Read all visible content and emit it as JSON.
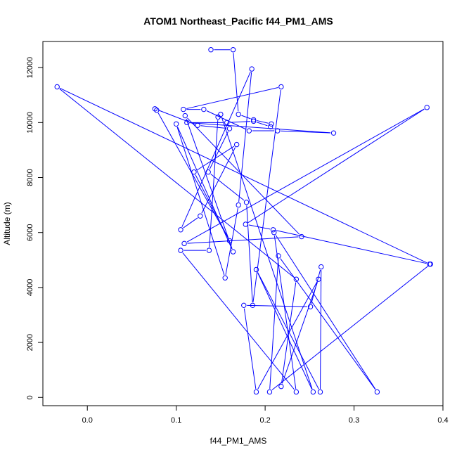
{
  "chart_data": {
    "type": "line",
    "title": "ATOM1 Northeast_Pacific f44_PM1_AMS",
    "xlabel": "f44_PM1_AMS",
    "ylabel": "Altitude (m)",
    "xlim": [
      -0.05,
      0.4
    ],
    "ylim": [
      -300,
      12950
    ],
    "x_ticks": [
      0.0,
      0.1,
      0.2,
      0.3,
      0.4
    ],
    "x_tick_labels": [
      "0.0",
      "0.1",
      "0.2",
      "0.3",
      "0.4"
    ],
    "y_ticks": [
      0,
      2000,
      4000,
      6000,
      8000,
      10000,
      12000
    ],
    "y_tick_labels": [
      "0",
      "2000",
      "4000",
      "6000",
      "8000",
      "10000",
      "12000"
    ],
    "grid": false,
    "legend": "none",
    "marker": "open-circle",
    "color": "#0000ff",
    "series": [
      {
        "points": [
          [
            0.139,
            12650
          ],
          [
            0.164,
            12650
          ],
          [
            0.17,
            10300
          ],
          [
            0.187,
            10100
          ],
          [
            0.207,
            9950
          ],
          [
            0.206,
            9850
          ],
          [
            0.187,
            10050
          ],
          [
            0.157,
            10000
          ],
          [
            0.112,
            10000
          ],
          [
            0.277,
            9620
          ],
          [
            0.214,
            9700
          ],
          [
            0.182,
            9700
          ],
          [
            0.131,
            10480
          ],
          [
            0.108,
            10480
          ],
          [
            0.218,
            11300
          ],
          [
            0.186,
            3350
          ],
          [
            0.179,
            7100
          ],
          [
            0.136,
            8200
          ],
          [
            0.16,
            9780
          ],
          [
            0.124,
            9900
          ],
          [
            0.076,
            10500
          ],
          [
            0.078,
            10450
          ],
          [
            0.16,
            5700
          ],
          [
            0.12,
            8200
          ],
          [
            0.168,
            9200
          ],
          [
            0.127,
            6600
          ],
          [
            0.105,
            6100
          ],
          [
            0.185,
            11950
          ],
          [
            0.17,
            7000
          ],
          [
            0.155,
            4350
          ],
          [
            0.1,
            9950
          ],
          [
            0.164,
            5300
          ],
          [
            0.11,
            10250
          ],
          [
            0.241,
            5850
          ],
          [
            0.109,
            5600
          ],
          [
            0.382,
            10550
          ],
          [
            0.178,
            6300
          ],
          [
            0.209,
            6100
          ],
          [
            0.385,
            4850
          ],
          [
            -0.034,
            11300
          ],
          [
            0.235,
            4300
          ],
          [
            0.218,
            400
          ],
          [
            0.26,
            4300
          ],
          [
            0.19,
            200
          ],
          [
            0.176,
            3350
          ],
          [
            0.251,
            3300
          ],
          [
            0.263,
            4750
          ],
          [
            0.262,
            200
          ],
          [
            0.19,
            4650
          ],
          [
            0.254,
            200
          ],
          [
            0.15,
            10300
          ],
          [
            0.147,
            10200
          ],
          [
            0.137,
            5350
          ],
          [
            0.105,
            5350
          ],
          [
            0.235,
            200
          ],
          [
            0.21,
            6000
          ],
          [
            0.326,
            200
          ],
          [
            0.215,
            5150
          ],
          [
            0.205,
            200
          ],
          [
            0.386,
            4850
          ]
        ]
      }
    ]
  }
}
